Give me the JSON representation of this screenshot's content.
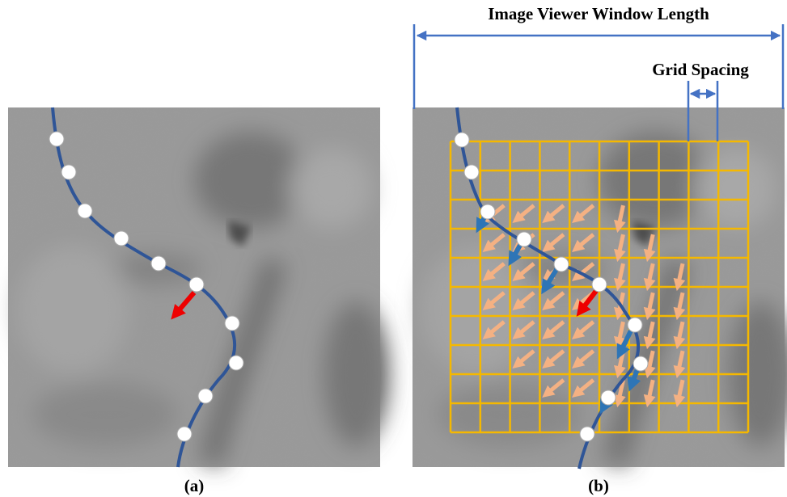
{
  "header": {
    "window_length_label": "Image Viewer Window Length",
    "grid_spacing_label": "Grid Spacing"
  },
  "panels": [
    {
      "label": "(a)"
    },
    {
      "label": "(b)"
    }
  ]
}
